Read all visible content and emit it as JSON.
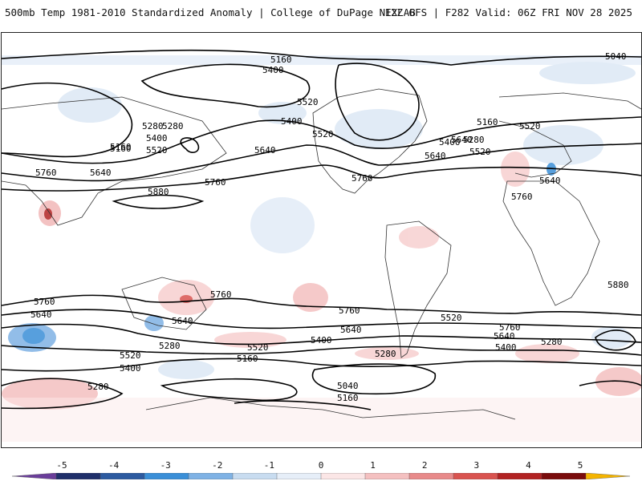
{
  "header": {
    "title_left": "500mb Temp 1981-2010 Standardized Anomaly | College of DuPage NEXLAB",
    "title_right": "12Z GFS | F282 Valid: 06Z FRI NOV 28 2025"
  },
  "contour_labels": [
    "5160",
    "5040",
    "5400",
    "5520",
    "5280",
    "5400",
    "5400",
    "5520",
    "5160",
    "5280",
    "5520",
    "5160",
    "5400",
    "5520",
    "5640",
    "5760",
    "5640",
    "5880",
    "5760",
    "5640",
    "5760",
    "5640",
    "5520",
    "5160",
    "5280",
    "5760",
    "5640",
    "5880",
    "5760",
    "5640",
    "5760",
    "5640",
    "5760",
    "5640",
    "5520",
    "5400",
    "5280",
    "5160",
    "5520",
    "5400",
    "5280",
    "5040",
    "5160",
    "5280",
    "5400",
    "5520",
    "5760",
    "5640",
    "5280"
  ],
  "colorbar": {
    "ticks": [
      "-5",
      "-4",
      "-3",
      "-2",
      "-1",
      "0",
      "1",
      "2",
      "3",
      "4",
      "5"
    ],
    "colors": [
      "#6a3d9a",
      "#1f2f6a",
      "#2c5aa0",
      "#3a8fd8",
      "#7fb2e5",
      "#c8dcf0",
      "#e6eef8",
      "#fbe6e6",
      "#f4c0c0",
      "#e88a8a",
      "#d9534f",
      "#b22222",
      "#7a0c0c",
      "#f4b400"
    ]
  }
}
